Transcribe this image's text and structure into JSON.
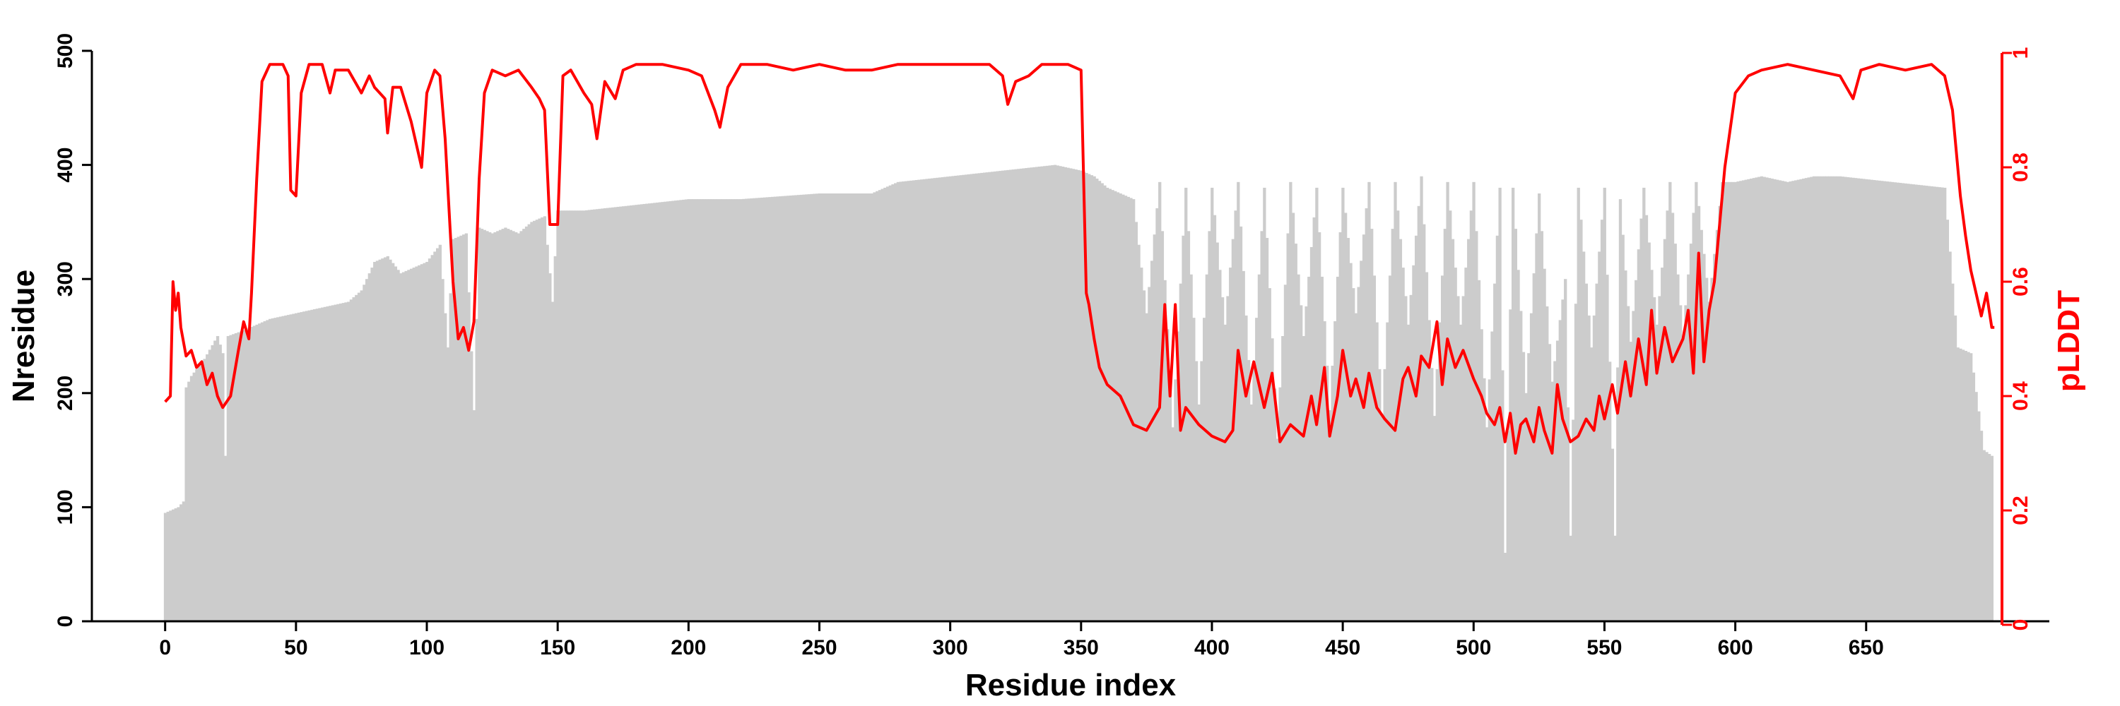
{
  "chart_data": {
    "type": "bar",
    "xlabel": "Residue index",
    "ylabel_left": "Nresidue",
    "ylabel_right": "pLDDT",
    "xlim": [
      -28,
      720
    ],
    "ylim_left": [
      0,
      500
    ],
    "ylim_right": [
      0,
      1
    ],
    "x_ticks": [
      0,
      50,
      100,
      150,
      200,
      250,
      300,
      350,
      400,
      450,
      500,
      550,
      600,
      650
    ],
    "y_left_ticks": [
      0,
      100,
      200,
      300,
      400,
      500
    ],
    "y_right_ticks": [
      0,
      0.2,
      0.4,
      0.6,
      0.8,
      1
    ],
    "y_right_tick_labels": [
      "0",
      "0.2",
      "0.4",
      "0.6",
      "0.8",
      "1"
    ],
    "grid": false,
    "bar_color": "#cccccc",
    "line_color": "#ff0000",
    "series": [
      {
        "kind": "bar",
        "axis": "left",
        "points": [
          [
            0,
            95
          ],
          [
            5,
            100
          ],
          [
            7,
            105
          ],
          [
            8,
            205
          ],
          [
            10,
            215
          ],
          [
            15,
            230
          ],
          [
            20,
            250
          ],
          [
            22,
            235
          ],
          [
            23,
            145
          ],
          [
            24,
            250
          ],
          [
            30,
            255
          ],
          [
            35,
            260
          ],
          [
            40,
            265
          ],
          [
            50,
            270
          ],
          [
            60,
            275
          ],
          [
            70,
            280
          ],
          [
            75,
            290
          ],
          [
            80,
            315
          ],
          [
            85,
            320
          ],
          [
            90,
            305
          ],
          [
            95,
            310
          ],
          [
            100,
            315
          ],
          [
            105,
            330
          ],
          [
            108,
            240
          ],
          [
            110,
            335
          ],
          [
            115,
            340
          ],
          [
            118,
            185
          ],
          [
            120,
            345
          ],
          [
            125,
            340
          ],
          [
            130,
            345
          ],
          [
            135,
            340
          ],
          [
            140,
            350
          ],
          [
            145,
            355
          ],
          [
            148,
            280
          ],
          [
            150,
            360
          ],
          [
            160,
            360
          ],
          [
            180,
            365
          ],
          [
            200,
            370
          ],
          [
            220,
            370
          ],
          [
            250,
            375
          ],
          [
            270,
            375
          ],
          [
            280,
            385
          ],
          [
            300,
            390
          ],
          [
            320,
            395
          ],
          [
            340,
            400
          ],
          [
            350,
            395
          ],
          [
            355,
            390
          ],
          [
            360,
            380
          ],
          [
            370,
            370
          ],
          [
            375,
            270
          ],
          [
            380,
            385
          ],
          [
            385,
            170
          ],
          [
            390,
            380
          ],
          [
            395,
            190
          ],
          [
            400,
            380
          ],
          [
            405,
            260
          ],
          [
            410,
            385
          ],
          [
            415,
            190
          ],
          [
            420,
            380
          ],
          [
            425,
            160
          ],
          [
            430,
            385
          ],
          [
            435,
            250
          ],
          [
            440,
            380
          ],
          [
            445,
            185
          ],
          [
            450,
            380
          ],
          [
            455,
            270
          ],
          [
            460,
            385
          ],
          [
            465,
            180
          ],
          [
            470,
            385
          ],
          [
            475,
            260
          ],
          [
            480,
            390
          ],
          [
            485,
            180
          ],
          [
            490,
            385
          ],
          [
            495,
            260
          ],
          [
            500,
            385
          ],
          [
            505,
            170
          ],
          [
            510,
            380
          ],
          [
            512,
            60
          ],
          [
            515,
            380
          ],
          [
            520,
            200
          ],
          [
            525,
            375
          ],
          [
            530,
            210
          ],
          [
            535,
            300
          ],
          [
            537,
            75
          ],
          [
            540,
            380
          ],
          [
            545,
            240
          ],
          [
            550,
            380
          ],
          [
            554,
            75
          ],
          [
            556,
            370
          ],
          [
            560,
            245
          ],
          [
            565,
            380
          ],
          [
            570,
            260
          ],
          [
            575,
            385
          ],
          [
            580,
            250
          ],
          [
            585,
            385
          ],
          [
            590,
            280
          ],
          [
            595,
            385
          ],
          [
            600,
            385
          ],
          [
            610,
            390
          ],
          [
            620,
            385
          ],
          [
            630,
            390
          ],
          [
            640,
            390
          ],
          [
            660,
            385
          ],
          [
            680,
            380
          ],
          [
            685,
            240
          ],
          [
            690,
            235
          ],
          [
            695,
            150
          ],
          [
            698,
            145
          ]
        ]
      },
      {
        "kind": "line",
        "axis": "right",
        "points": [
          [
            0,
            0.39
          ],
          [
            2,
            0.4
          ],
          [
            3,
            0.6
          ],
          [
            4,
            0.55
          ],
          [
            5,
            0.58
          ],
          [
            6,
            0.52
          ],
          [
            8,
            0.47
          ],
          [
            10,
            0.48
          ],
          [
            12,
            0.45
          ],
          [
            14,
            0.46
          ],
          [
            16,
            0.42
          ],
          [
            18,
            0.44
          ],
          [
            20,
            0.4
          ],
          [
            22,
            0.38
          ],
          [
            25,
            0.4
          ],
          [
            28,
            0.48
          ],
          [
            30,
            0.53
          ],
          [
            32,
            0.5
          ],
          [
            33,
            0.58
          ],
          [
            35,
            0.78
          ],
          [
            37,
            0.95
          ],
          [
            40,
            0.98
          ],
          [
            45,
            0.98
          ],
          [
            47,
            0.96
          ],
          [
            48,
            0.76
          ],
          [
            50,
            0.75
          ],
          [
            52,
            0.93
          ],
          [
            55,
            0.98
          ],
          [
            60,
            0.98
          ],
          [
            63,
            0.93
          ],
          [
            65,
            0.97
          ],
          [
            70,
            0.97
          ],
          [
            75,
            0.93
          ],
          [
            78,
            0.96
          ],
          [
            80,
            0.94
          ],
          [
            84,
            0.92
          ],
          [
            85,
            0.86
          ],
          [
            87,
            0.94
          ],
          [
            90,
            0.94
          ],
          [
            92,
            0.91
          ],
          [
            94,
            0.88
          ],
          [
            96,
            0.84
          ],
          [
            98,
            0.8
          ],
          [
            100,
            0.93
          ],
          [
            103,
            0.97
          ],
          [
            105,
            0.96
          ],
          [
            107,
            0.85
          ],
          [
            110,
            0.6
          ],
          [
            112,
            0.5
          ],
          [
            114,
            0.52
          ],
          [
            116,
            0.48
          ],
          [
            118,
            0.53
          ],
          [
            120,
            0.78
          ],
          [
            122,
            0.93
          ],
          [
            125,
            0.97
          ],
          [
            130,
            0.96
          ],
          [
            135,
            0.97
          ],
          [
            140,
            0.94
          ],
          [
            143,
            0.92
          ],
          [
            145,
            0.9
          ],
          [
            147,
            0.7
          ],
          [
            150,
            0.7
          ],
          [
            152,
            0.96
          ],
          [
            155,
            0.97
          ],
          [
            160,
            0.93
          ],
          [
            163,
            0.91
          ],
          [
            165,
            0.85
          ],
          [
            168,
            0.95
          ],
          [
            172,
            0.92
          ],
          [
            175,
            0.97
          ],
          [
            180,
            0.98
          ],
          [
            190,
            0.98
          ],
          [
            200,
            0.97
          ],
          [
            205,
            0.96
          ],
          [
            210,
            0.9
          ],
          [
            212,
            0.87
          ],
          [
            215,
            0.94
          ],
          [
            220,
            0.98
          ],
          [
            230,
            0.98
          ],
          [
            240,
            0.97
          ],
          [
            250,
            0.98
          ],
          [
            260,
            0.97
          ],
          [
            270,
            0.97
          ],
          [
            280,
            0.98
          ],
          [
            290,
            0.98
          ],
          [
            300,
            0.98
          ],
          [
            315,
            0.98
          ],
          [
            320,
            0.96
          ],
          [
            322,
            0.91
          ],
          [
            325,
            0.95
          ],
          [
            330,
            0.96
          ],
          [
            335,
            0.98
          ],
          [
            345,
            0.98
          ],
          [
            350,
            0.97
          ],
          [
            352,
            0.58
          ],
          [
            353,
            0.56
          ],
          [
            355,
            0.5
          ],
          [
            357,
            0.45
          ],
          [
            360,
            0.42
          ],
          [
            365,
            0.4
          ],
          [
            370,
            0.35
          ],
          [
            375,
            0.34
          ],
          [
            380,
            0.38
          ],
          [
            382,
            0.56
          ],
          [
            384,
            0.4
          ],
          [
            386,
            0.56
          ],
          [
            388,
            0.34
          ],
          [
            390,
            0.38
          ],
          [
            395,
            0.35
          ],
          [
            400,
            0.33
          ],
          [
            405,
            0.32
          ],
          [
            408,
            0.34
          ],
          [
            410,
            0.48
          ],
          [
            413,
            0.4
          ],
          [
            416,
            0.46
          ],
          [
            420,
            0.38
          ],
          [
            423,
            0.44
          ],
          [
            426,
            0.32
          ],
          [
            430,
            0.35
          ],
          [
            435,
            0.33
          ],
          [
            438,
            0.4
          ],
          [
            440,
            0.35
          ],
          [
            443,
            0.45
          ],
          [
            445,
            0.33
          ],
          [
            448,
            0.4
          ],
          [
            450,
            0.48
          ],
          [
            453,
            0.4
          ],
          [
            455,
            0.43
          ],
          [
            458,
            0.38
          ],
          [
            460,
            0.44
          ],
          [
            463,
            0.38
          ],
          [
            466,
            0.36
          ],
          [
            470,
            0.34
          ],
          [
            473,
            0.43
          ],
          [
            475,
            0.45
          ],
          [
            478,
            0.4
          ],
          [
            480,
            0.47
          ],
          [
            483,
            0.45
          ],
          [
            486,
            0.53
          ],
          [
            488,
            0.42
          ],
          [
            490,
            0.5
          ],
          [
            493,
            0.45
          ],
          [
            496,
            0.48
          ],
          [
            500,
            0.43
          ],
          [
            503,
            0.4
          ],
          [
            505,
            0.37
          ],
          [
            508,
            0.35
          ],
          [
            510,
            0.38
          ],
          [
            512,
            0.32
          ],
          [
            514,
            0.37
          ],
          [
            516,
            0.3
          ],
          [
            518,
            0.35
          ],
          [
            520,
            0.36
          ],
          [
            523,
            0.32
          ],
          [
            525,
            0.38
          ],
          [
            527,
            0.34
          ],
          [
            530,
            0.3
          ],
          [
            532,
            0.42
          ],
          [
            534,
            0.36
          ],
          [
            537,
            0.32
          ],
          [
            540,
            0.33
          ],
          [
            543,
            0.36
          ],
          [
            546,
            0.34
          ],
          [
            548,
            0.4
          ],
          [
            550,
            0.36
          ],
          [
            553,
            0.42
          ],
          [
            555,
            0.37
          ],
          [
            558,
            0.46
          ],
          [
            560,
            0.4
          ],
          [
            563,
            0.5
          ],
          [
            566,
            0.42
          ],
          [
            568,
            0.55
          ],
          [
            570,
            0.44
          ],
          [
            573,
            0.52
          ],
          [
            576,
            0.46
          ],
          [
            580,
            0.5
          ],
          [
            582,
            0.55
          ],
          [
            584,
            0.44
          ],
          [
            586,
            0.65
          ],
          [
            588,
            0.46
          ],
          [
            590,
            0.55
          ],
          [
            592,
            0.6
          ],
          [
            594,
            0.7
          ],
          [
            596,
            0.8
          ],
          [
            600,
            0.93
          ],
          [
            605,
            0.96
          ],
          [
            610,
            0.97
          ],
          [
            620,
            0.98
          ],
          [
            630,
            0.97
          ],
          [
            640,
            0.96
          ],
          [
            645,
            0.92
          ],
          [
            648,
            0.97
          ],
          [
            655,
            0.98
          ],
          [
            665,
            0.97
          ],
          [
            675,
            0.98
          ],
          [
            680,
            0.96
          ],
          [
            683,
            0.9
          ],
          [
            686,
            0.75
          ],
          [
            688,
            0.68
          ],
          [
            690,
            0.62
          ],
          [
            692,
            0.58
          ],
          [
            694,
            0.54
          ],
          [
            696,
            0.58
          ],
          [
            698,
            0.52
          ],
          [
            699,
            0.52
          ]
        ]
      }
    ]
  }
}
